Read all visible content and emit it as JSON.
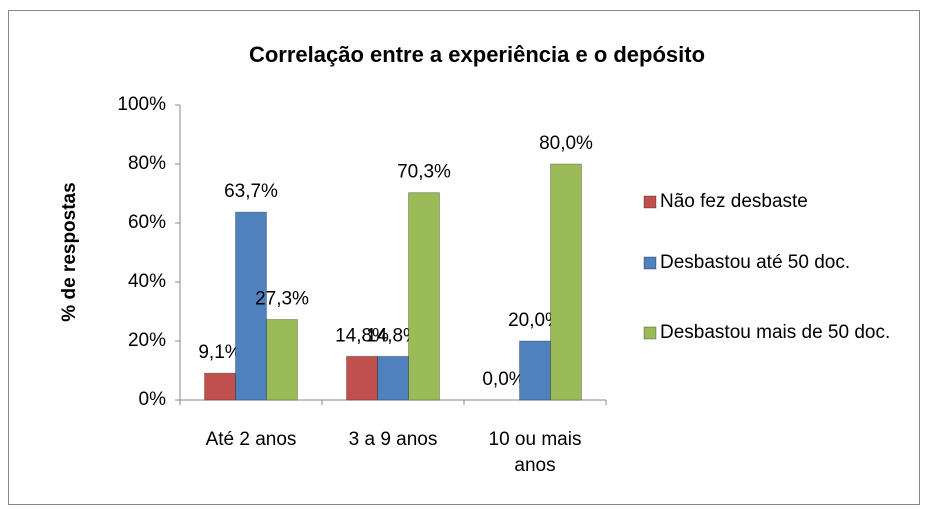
{
  "chart_data": {
    "type": "bar",
    "title": "Correlação entre a experiência e o depósito",
    "y_label": "% de respostas",
    "categories": [
      "Até 2 anos",
      "3 a 9 anos",
      "10 ou mais anos"
    ],
    "series": [
      {
        "name": "Não fez desbaste",
        "color": "#c0504d",
        "values": [
          9.1,
          14.8,
          0.0
        ],
        "value_labels": [
          "9,1%",
          "14,8%",
          "0,0%"
        ]
      },
      {
        "name": "Desbastou até 50 doc.",
        "color": "#4f81bd",
        "values": [
          63.7,
          14.8,
          20.0
        ],
        "value_labels": [
          "63,7%",
          "14,8%",
          "20,0%"
        ]
      },
      {
        "name": "Desbastou mais de 50 doc.",
        "color": "#9bbb59",
        "values": [
          27.3,
          70.3,
          80.0
        ],
        "value_labels": [
          "27,3%",
          "70,3%",
          "80,0%"
        ]
      }
    ],
    "ylim": [
      0,
      100
    ],
    "yticks": [
      {
        "value": 0,
        "label": "0%"
      },
      {
        "value": 20,
        "label": "20%"
      },
      {
        "value": 40,
        "label": "40%"
      },
      {
        "value": 60,
        "label": "60%"
      },
      {
        "value": 80,
        "label": "80%"
      },
      {
        "value": 100,
        "label": "100%"
      }
    ],
    "grid": false,
    "legend": "right"
  }
}
